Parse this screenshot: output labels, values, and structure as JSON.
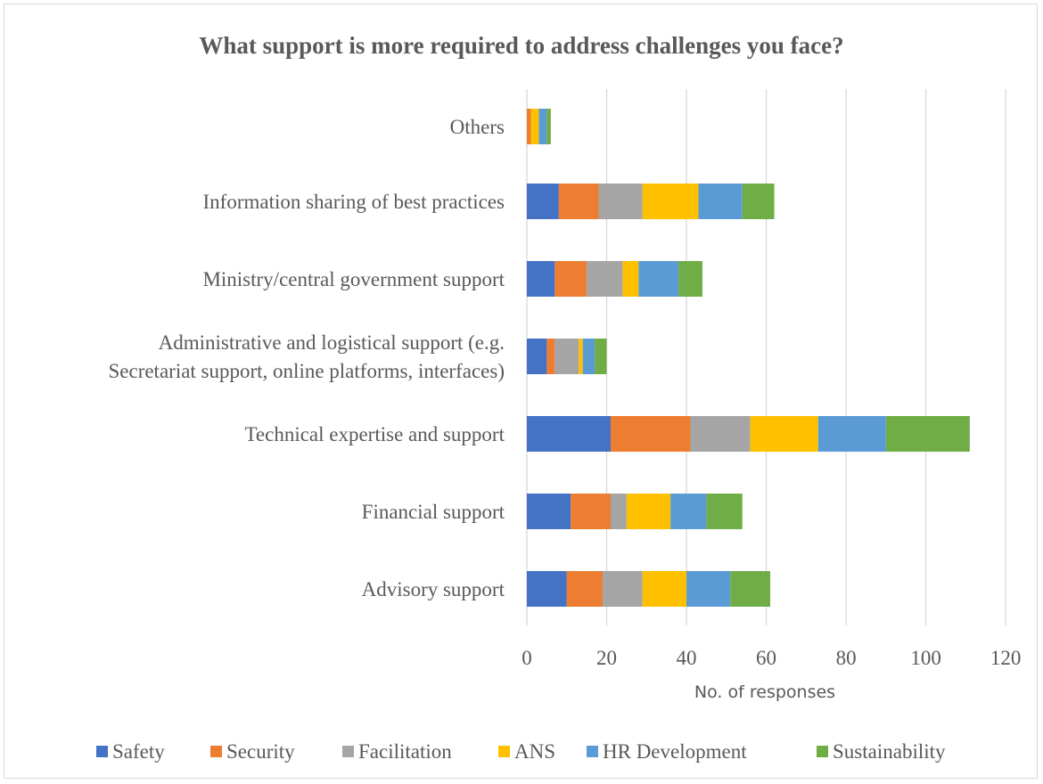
{
  "chart_data": {
    "type": "bar",
    "orientation": "horizontal",
    "stacked": true,
    "title": "What support is more required to address challenges you face?",
    "xlabel": "No. of responses",
    "ylabel": "",
    "xlim": [
      0,
      120
    ],
    "xticks": [
      0,
      20,
      40,
      60,
      80,
      100,
      120
    ],
    "grid": true,
    "legend_position": "bottom",
    "categories": [
      [
        "Advisory support"
      ],
      [
        "Financial support"
      ],
      [
        "Technical expertise and support"
      ],
      [
        "Administrative and logistical support (e.g.",
        "Secretariat support, online platforms, interfaces)"
      ],
      [
        "Ministry/central government support"
      ],
      [
        "Information sharing of best practices"
      ],
      [
        "Others"
      ]
    ],
    "series": [
      {
        "name": "Safety",
        "color": "#4472C4",
        "values": [
          10,
          11,
          21,
          5,
          7,
          8,
          0
        ]
      },
      {
        "name": "Security",
        "color": "#ED7D31",
        "values": [
          9,
          10,
          20,
          2,
          8,
          10,
          1
        ]
      },
      {
        "name": "Facilitation",
        "color": "#A5A5A5",
        "values": [
          10,
          4,
          15,
          6,
          9,
          11,
          0
        ]
      },
      {
        "name": "ANS",
        "color": "#FFC000",
        "values": [
          11,
          11,
          17,
          1,
          4,
          14,
          2
        ]
      },
      {
        "name": "HR Development",
        "color": "#5B9BD5",
        "values": [
          11,
          9,
          17,
          3,
          10,
          11,
          2
        ]
      },
      {
        "name": "Sustainability",
        "color": "#70AD47",
        "values": [
          10,
          9,
          21,
          3,
          6,
          8,
          1
        ]
      }
    ]
  }
}
